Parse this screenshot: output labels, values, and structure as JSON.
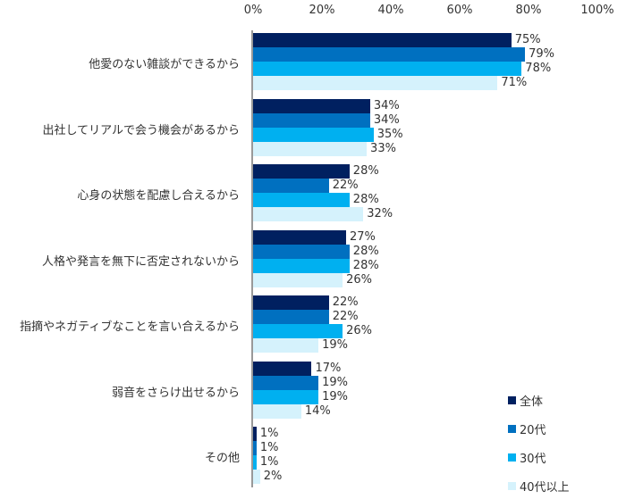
{
  "chart_data": {
    "type": "bar",
    "orientation": "horizontal",
    "title": "",
    "xlabel": "",
    "ylabel": "",
    "xlim": [
      0,
      100
    ],
    "x_ticks": [
      "0%",
      "20%",
      "40%",
      "60%",
      "80%",
      "100%"
    ],
    "grid": false,
    "legend_position": "bottom-right",
    "categories": [
      "他愛のない雑談ができるから",
      "出社してリアルで会う機会があるから",
      "心身の状態を配慮し合えるから",
      "人格や発言を無下に否定されないから",
      "指摘やネガティブなことを言い合えるから",
      "弱音をさらけ出せるから",
      "その他"
    ],
    "series": [
      {
        "name": "全体",
        "color": "#002060",
        "values": [
          75,
          34,
          28,
          27,
          22,
          17,
          1
        ]
      },
      {
        "name": "20代",
        "color": "#0070C0",
        "values": [
          79,
          34,
          22,
          28,
          22,
          19,
          1
        ]
      },
      {
        "name": "30代",
        "color": "#00B0F0",
        "values": [
          78,
          35,
          28,
          28,
          26,
          19,
          1
        ]
      },
      {
        "name": "40代以上",
        "color": "#D5F2FC",
        "values": [
          71,
          33,
          32,
          26,
          19,
          14,
          2
        ]
      }
    ],
    "value_suffix": "%"
  }
}
